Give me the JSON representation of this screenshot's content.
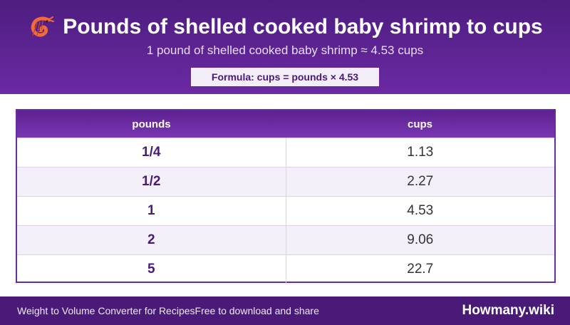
{
  "header": {
    "icon": "shrimp-icon",
    "title": "Pounds of shelled cooked baby shrimp to cups",
    "subtitle": "1 pound of shelled cooked baby shrimp ≈ 4.53 cups",
    "formula": "Formula: cups = pounds × 4.53"
  },
  "table": {
    "columns": [
      "pounds",
      "cups"
    ],
    "rows": [
      {
        "pounds": "1/4",
        "cups": "1.13"
      },
      {
        "pounds": "1/2",
        "cups": "2.27"
      },
      {
        "pounds": "1",
        "cups": "4.53"
      },
      {
        "pounds": "2",
        "cups": "9.06"
      },
      {
        "pounds": "5",
        "cups": "22.7"
      }
    ]
  },
  "footer": {
    "left_text": "Weight to Volume Converter for Recipes",
    "mid_text": "Free to download and share",
    "brand": "Howmany.wiki"
  },
  "colors": {
    "header": "#5c2290",
    "accent": "#6a2aa3",
    "footer": "#4a1a78"
  }
}
